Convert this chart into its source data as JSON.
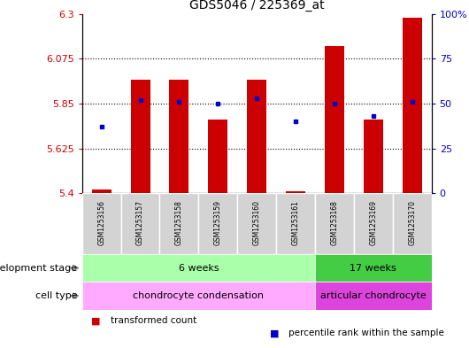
{
  "title": "GDS5046 / 225369_at",
  "samples": [
    "GSM1253156",
    "GSM1253157",
    "GSM1253158",
    "GSM1253159",
    "GSM1253160",
    "GSM1253161",
    "GSM1253168",
    "GSM1253169",
    "GSM1253170"
  ],
  "transformed_counts": [
    5.42,
    5.97,
    5.97,
    5.77,
    5.97,
    5.41,
    6.14,
    5.77,
    6.28
  ],
  "percentile_ranks": [
    37,
    52,
    51,
    50,
    53,
    40,
    50,
    43,
    51
  ],
  "ylim_left": [
    5.4,
    6.3
  ],
  "ylim_right": [
    0,
    100
  ],
  "yticks_left": [
    5.4,
    5.625,
    5.85,
    6.075,
    6.3
  ],
  "yticks_right": [
    0,
    25,
    50,
    75,
    100
  ],
  "ytick_labels_left": [
    "5.4",
    "5.625",
    "5.85",
    "6.075",
    "6.3"
  ],
  "ytick_labels_right": [
    "0",
    "25",
    "50",
    "75",
    "100%"
  ],
  "hlines": [
    5.625,
    5.85,
    6.075
  ],
  "bar_color": "#cc0000",
  "dot_color": "#0000cc",
  "bar_width": 0.5,
  "development_stage_groups": [
    {
      "label": "6 weeks",
      "start": 0,
      "end": 5,
      "color": "#aaffaa"
    },
    {
      "label": "17 weeks",
      "start": 6,
      "end": 8,
      "color": "#44cc44"
    }
  ],
  "cell_type_groups": [
    {
      "label": "chondrocyte condensation",
      "start": 0,
      "end": 5,
      "color": "#ffaaff"
    },
    {
      "label": "articular chondrocyte",
      "start": 6,
      "end": 8,
      "color": "#dd44dd"
    }
  ],
  "row_labels": [
    "development stage",
    "cell type"
  ],
  "legend_items": [
    {
      "color": "#cc0000",
      "label": "transformed count"
    },
    {
      "color": "#0000cc",
      "label": "percentile rank within the sample"
    }
  ],
  "sample_bg_color": "#d3d3d3",
  "sample_border_color": "#ffffff",
  "background_color": "#ffffff",
  "left_tick_color": "#cc0000",
  "right_tick_color": "#0000cc",
  "arrow_color": "#888888"
}
